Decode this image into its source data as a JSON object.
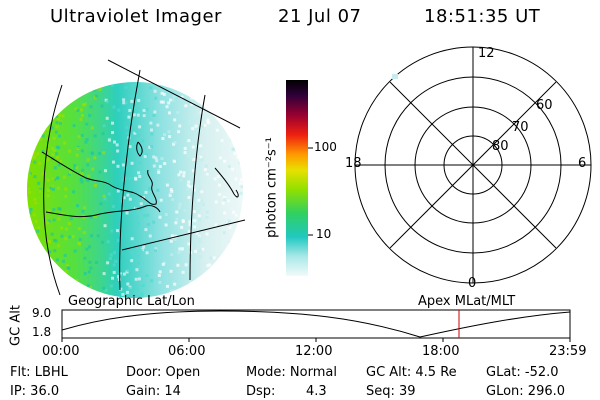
{
  "header": {
    "instrument": "Ultraviolet Imager",
    "date": "21 Jul 07",
    "time": "18:51:35 UT"
  },
  "colorbar": {
    "unit_label": "photon cm⁻²s⁻¹",
    "ticks": [
      "100",
      "10"
    ]
  },
  "polar": {
    "mlt_labels": {
      "top": "12",
      "left": "18",
      "right": "6",
      "bottom": "0"
    },
    "lat_labels": [
      "60",
      "70",
      "80"
    ]
  },
  "timeline": {
    "left_label": "Geographic Lat/Lon",
    "right_label": "Apex MLat/MLT",
    "axis_label": "GC Alt",
    "y_ticks": [
      "9.0",
      "1.8"
    ],
    "x_ticks": [
      "00:00",
      "06:00",
      "12:00",
      "18:00",
      "23:59"
    ],
    "marker_color": "#cc0000"
  },
  "info": {
    "row1": {
      "flt": "Flt: LBHL",
      "door": "Door: Open",
      "mode": "Mode: Normal",
      "gc_alt": "GC Alt: 4.5 Re",
      "glat": "GLat: -52.0"
    },
    "row2": {
      "ip": "IP: 36.0",
      "gain": "Gain: 14",
      "dsp_label": "Dsp:",
      "dsp_value": "4.3",
      "seq": "Seq: 39",
      "glon": "GLon: 296.0"
    }
  }
}
